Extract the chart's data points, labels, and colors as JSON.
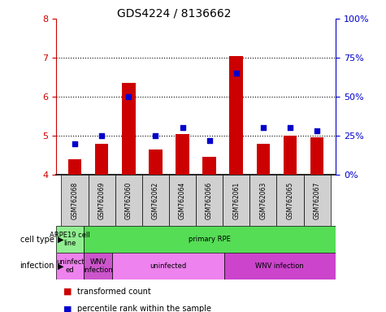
{
  "title": "GDS4224 / 8136662",
  "samples": [
    "GSM762068",
    "GSM762069",
    "GSM762060",
    "GSM762062",
    "GSM762064",
    "GSM762066",
    "GSM762061",
    "GSM762063",
    "GSM762065",
    "GSM762067"
  ],
  "transformed_count": [
    4.4,
    4.8,
    6.35,
    4.65,
    5.05,
    4.45,
    7.05,
    4.8,
    5.0,
    4.95
  ],
  "percentile_rank": [
    20,
    25,
    50,
    25,
    30,
    22,
    65,
    30,
    30,
    28
  ],
  "ylim_left": [
    4,
    8
  ],
  "ylim_right": [
    0,
    100
  ],
  "yticks_left": [
    4,
    5,
    6,
    7,
    8
  ],
  "yticks_right": [
    0,
    25,
    50,
    75,
    100
  ],
  "ytick_labels_right": [
    "0%",
    "25%",
    "50%",
    "75%",
    "100%"
  ],
  "bar_color": "#cc0000",
  "dot_color": "#0000cc",
  "bar_bottom": 4,
  "left_axis_color": "#cc0000",
  "right_axis_color": "#0000cc",
  "cell_type_blocks": [
    {
      "text": "ARPE19 cell\nline",
      "start": 0,
      "end": 1,
      "color": "#90ee90"
    },
    {
      "text": "primary RPE",
      "start": 1,
      "end": 10,
      "color": "#55dd55"
    }
  ],
  "infection_blocks": [
    {
      "text": "uninfect\ned",
      "start": 0,
      "end": 1,
      "color": "#ee82ee"
    },
    {
      "text": "WNV\ninfection",
      "start": 1,
      "end": 2,
      "color": "#cc55cc"
    },
    {
      "text": "uninfected",
      "start": 2,
      "end": 6,
      "color": "#ee82ee"
    },
    {
      "text": "WNV infection",
      "start": 6,
      "end": 10,
      "color": "#cc44cc"
    }
  ],
  "legend_items": [
    {
      "color": "#cc0000",
      "label": "transformed count"
    },
    {
      "color": "#0000cc",
      "label": "percentile rank within the sample"
    }
  ]
}
